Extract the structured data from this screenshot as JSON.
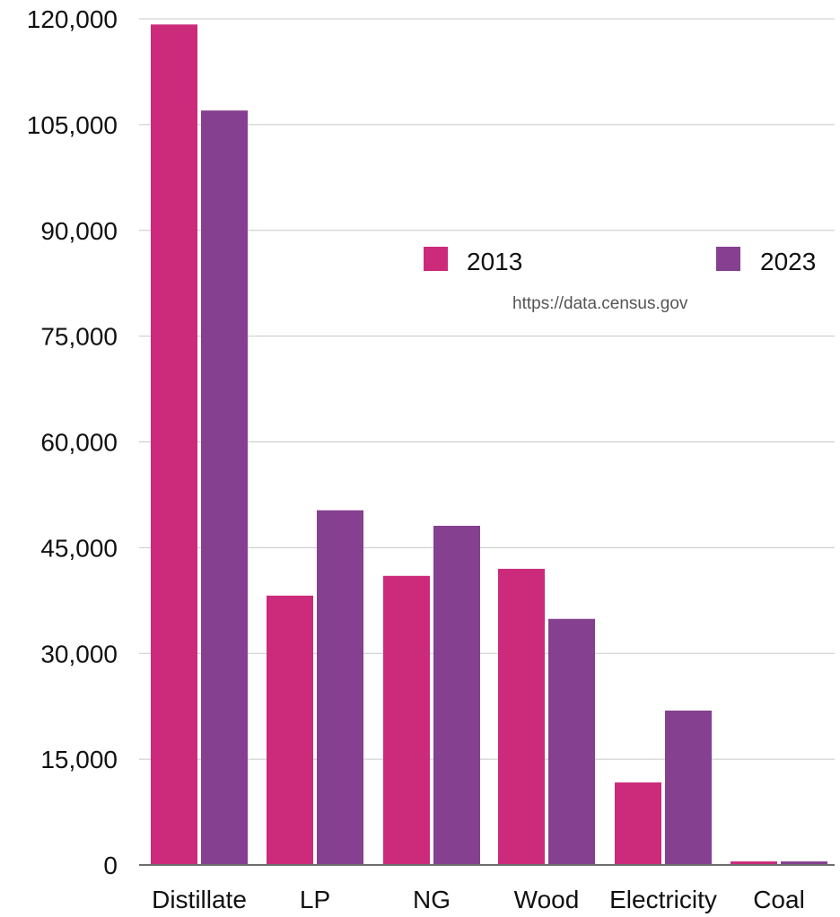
{
  "chart_data": {
    "type": "bar",
    "categories": [
      "Distillate",
      "LP",
      "NG",
      "Wood",
      "Electricity",
      "Coal"
    ],
    "series": [
      {
        "name": "2013",
        "color": "#cc2a7a",
        "values": [
          119200,
          38200,
          41000,
          42000,
          11700,
          500
        ]
      },
      {
        "name": "2023",
        "color": "#85408f",
        "values": [
          107000,
          50300,
          48100,
          34900,
          21900,
          500
        ]
      }
    ],
    "ylim": [
      0,
      120000
    ],
    "yticks": [
      "0",
      "15,000",
      "30,000",
      "45,000",
      "60,000",
      "75,000",
      "90,000",
      "105,000",
      "120,000"
    ],
    "ytick_values": [
      0,
      15000,
      30000,
      45000,
      60000,
      75000,
      90000,
      105000,
      120000
    ],
    "grid": true,
    "legend_position": "top-right",
    "source": "https://data.census.gov",
    "axis_color": "#6e6e6e",
    "grid_color": "#c8c8c8"
  }
}
